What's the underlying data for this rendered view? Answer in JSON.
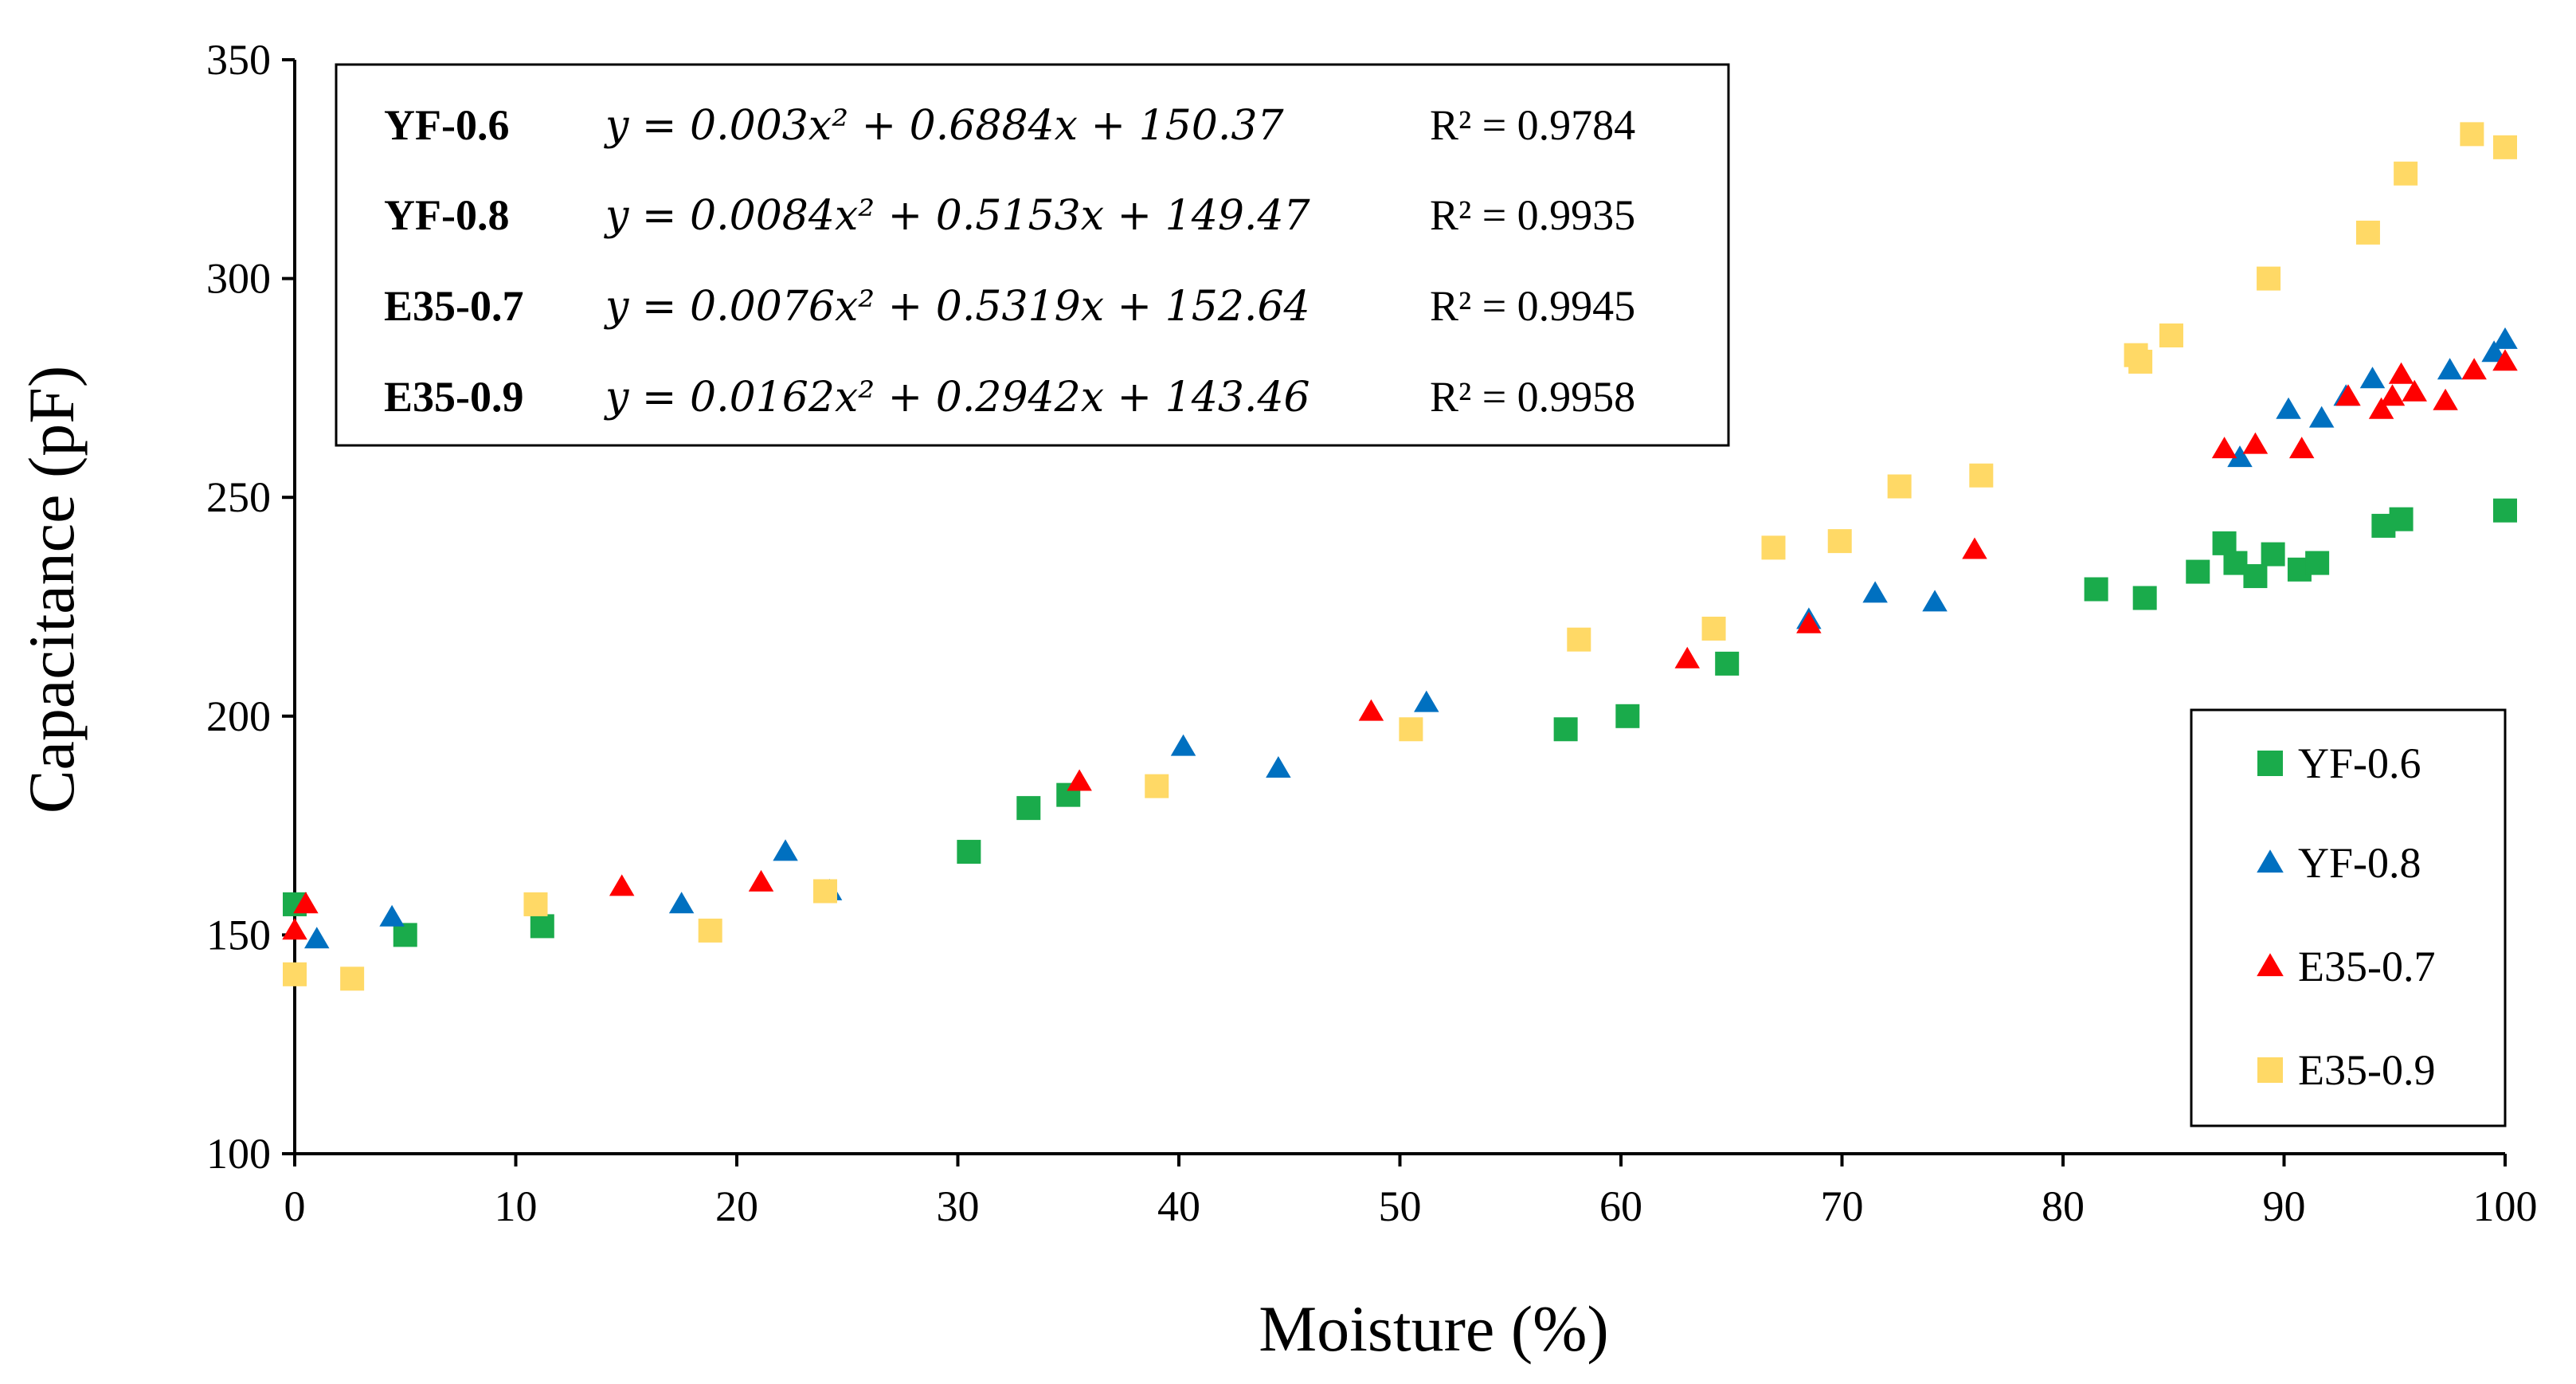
{
  "chart_data": {
    "type": "scatter",
    "title": "",
    "xlabel": "Moisture (%)",
    "ylabel": "Capacitance (pF)",
    "xlim": [
      0,
      100
    ],
    "ylim": [
      100,
      350
    ],
    "xticks": [
      "0",
      "10",
      "20",
      "30",
      "40",
      "50",
      "60",
      "70",
      "80",
      "90",
      "100"
    ],
    "yticks": [
      "100",
      "150",
      "200",
      "250",
      "300",
      "350"
    ],
    "grid": false,
    "legend_position": "bottom-right",
    "equations": [
      {
        "name": "YF-0.6",
        "equation": "y = 0.003x² + 0.6884x + 150.37",
        "r2": "R² = 0.9784"
      },
      {
        "name": "YF-0.8",
        "equation": "y = 0.0084x² + 0.5153x + 149.47",
        "r2": "R² = 0.9935"
      },
      {
        "name": "E35-0.7",
        "equation": "y = 0.0076x² + 0.5319x + 152.64",
        "r2": "R² = 0.9945"
      },
      {
        "name": "E35-0.9",
        "equation": "y = 0.0162x² + 0.2942x + 143.46",
        "r2": "R² = 0.9958"
      }
    ],
    "series": [
      {
        "name": "YF-0.6",
        "marker": "square",
        "color": "#1aab4b",
        "points": [
          [
            0,
            157
          ],
          [
            5,
            150
          ],
          [
            11.2,
            152
          ],
          [
            30.5,
            169
          ],
          [
            33.2,
            179
          ],
          [
            35,
            182
          ],
          [
            57.5,
            197
          ],
          [
            60.3,
            200
          ],
          [
            64.8,
            212
          ],
          [
            81.5,
            229
          ],
          [
            83.7,
            227
          ],
          [
            86.1,
            233
          ],
          [
            87.3,
            239.5
          ],
          [
            87.8,
            235
          ],
          [
            88.7,
            232
          ],
          [
            89.5,
            237
          ],
          [
            90.7,
            233.5
          ],
          [
            91.5,
            235
          ],
          [
            94.5,
            243.5
          ],
          [
            95.3,
            245
          ],
          [
            100,
            247
          ]
        ]
      },
      {
        "name": "YF-0.8",
        "marker": "triangle",
        "color": "#0070c0",
        "points": [
          [
            1,
            149
          ],
          [
            4.4,
            154
          ],
          [
            17.5,
            157
          ],
          [
            22.2,
            169
          ],
          [
            24.2,
            160
          ],
          [
            40.2,
            193
          ],
          [
            44.5,
            188
          ],
          [
            51.2,
            203
          ],
          [
            68.5,
            222
          ],
          [
            71.5,
            228
          ],
          [
            74.2,
            226
          ],
          [
            88,
            259
          ],
          [
            90.2,
            270
          ],
          [
            91.7,
            268
          ],
          [
            92.8,
            273
          ],
          [
            94,
            277
          ],
          [
            97.5,
            279
          ],
          [
            99.5,
            283
          ],
          [
            100,
            286
          ]
        ]
      },
      {
        "name": "E35-0.7",
        "marker": "triangle",
        "color": "#ff0000",
        "points": [
          [
            0,
            151
          ],
          [
            0.5,
            157
          ],
          [
            14.8,
            161
          ],
          [
            21.1,
            162
          ],
          [
            35.5,
            185
          ],
          [
            48.7,
            201
          ],
          [
            63,
            213
          ],
          [
            68.5,
            221
          ],
          [
            76,
            238
          ],
          [
            87.3,
            261
          ],
          [
            88.7,
            262
          ],
          [
            90.8,
            261
          ],
          [
            92.9,
            273
          ],
          [
            94.4,
            270
          ],
          [
            94.9,
            273
          ],
          [
            95.3,
            278
          ],
          [
            95.9,
            274
          ],
          [
            97.3,
            272
          ],
          [
            98.6,
            279
          ],
          [
            100,
            281
          ]
        ]
      },
      {
        "name": "E35-0.9",
        "marker": "square",
        "color": "#ffd966",
        "points": [
          [
            0,
            141
          ],
          [
            2.6,
            140
          ],
          [
            10.9,
            157
          ],
          [
            18.8,
            151
          ],
          [
            24,
            160
          ],
          [
            39,
            184
          ],
          [
            50.5,
            197
          ],
          [
            58.1,
            217.5
          ],
          [
            64.2,
            220
          ],
          [
            66.9,
            238.5
          ],
          [
            69.9,
            240
          ],
          [
            72.6,
            252.5
          ],
          [
            76.3,
            255
          ],
          [
            83.3,
            282.5
          ],
          [
            83.5,
            281
          ],
          [
            84.9,
            287
          ],
          [
            89.3,
            300
          ],
          [
            93.8,
            310.5
          ],
          [
            95.5,
            324
          ],
          [
            98.5,
            333
          ],
          [
            100,
            330
          ]
        ]
      }
    ]
  }
}
